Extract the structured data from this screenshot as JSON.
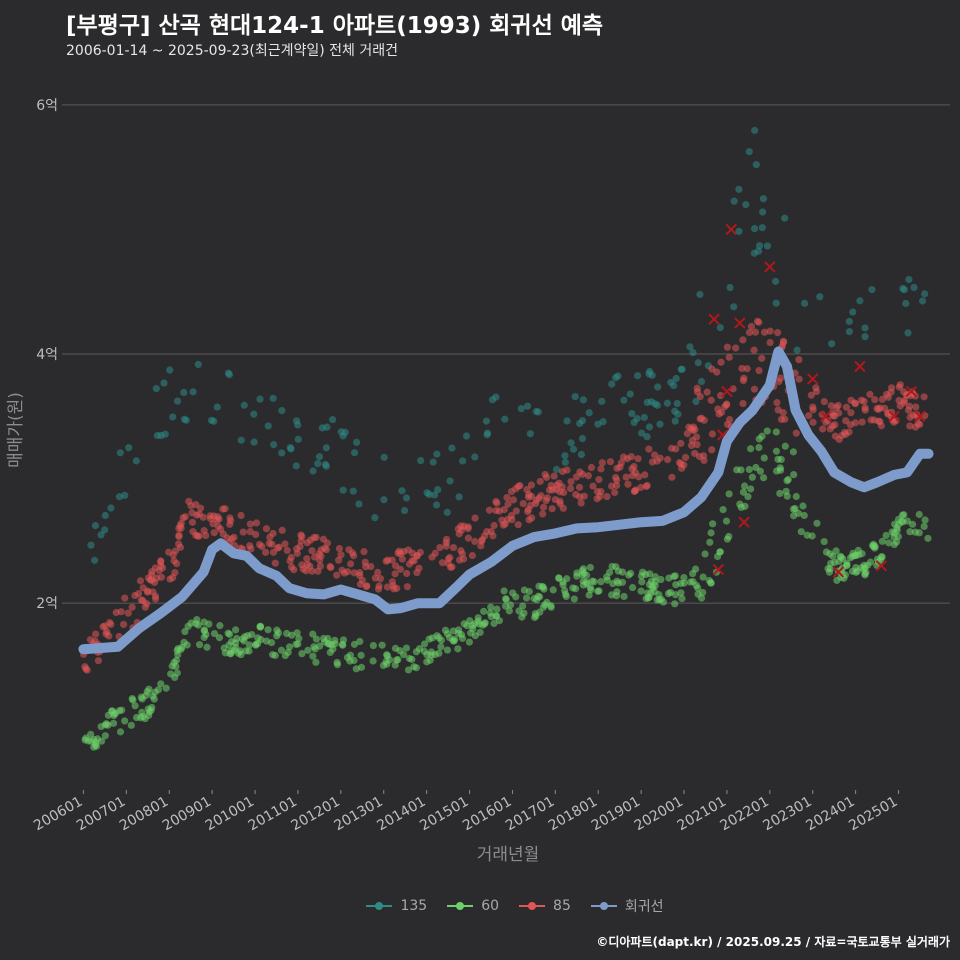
{
  "title": "[부평구] 산곡 현대124-1 아파트(1993) 회귀선 예측",
  "subtitle": "2006-01-14 ~ 2025-09-23(최근계약일) 전체 거래건",
  "credit": "©디아파트(dapt.kr) / 2025.09.25 / 자료=국토교통부 실거래가",
  "colors": {
    "background": "#2b2b2d",
    "grid": "#5b5b5b",
    "series_135": "#2e8b86",
    "series_60": "#6ed06a",
    "series_85": "#e05558",
    "regression": "#7d9bcb",
    "cancelled_mark": "#b0181c"
  },
  "chart_data": {
    "type": "scatter",
    "title": "[부평구] 산곡 현대124-1 아파트(1993) 회귀선 예측",
    "subtitle": "2006-01-14 ~ 2025-09-23(최근계약일) 전체 거래건",
    "xlabel": "거래년월",
    "ylabel": "매매가(원)",
    "x_ticks": [
      "200601",
      "200701",
      "200801",
      "200901",
      "201001",
      "201101",
      "201201",
      "201301",
      "201401",
      "201501",
      "201601",
      "201701",
      "201801",
      "201901",
      "202001",
      "202101",
      "202201",
      "202301",
      "202401",
      "202501"
    ],
    "y_ticks": [
      {
        "value": 2,
        "label": "2억"
      },
      {
        "value": 4,
        "label": "4억"
      },
      {
        "value": 6,
        "label": "6억"
      }
    ],
    "ylim": [
      0.5,
      6.2
    ],
    "y_unit": "억",
    "grid": "horizontal",
    "legend_position": "bottom",
    "series": [
      {
        "name": "135",
        "color": "#2e8b86",
        "trend": [
          [
            2006.0,
            2.6
          ],
          [
            2006.5,
            2.5
          ],
          [
            2007.0,
            3.1
          ],
          [
            2007.5,
            3.4
          ],
          [
            2008.0,
            3.6
          ],
          [
            2008.5,
            3.7
          ],
          [
            2009.0,
            3.7
          ],
          [
            2009.5,
            3.6
          ],
          [
            2010.0,
            3.5
          ],
          [
            2011.0,
            3.3
          ],
          [
            2012.0,
            3.2
          ],
          [
            2013.0,
            2.9
          ],
          [
            2014.0,
            2.9
          ],
          [
            2014.5,
            3.0
          ],
          [
            2015.0,
            3.2
          ],
          [
            2015.5,
            3.4
          ],
          [
            2016.0,
            3.4
          ],
          [
            2017.0,
            3.3
          ],
          [
            2018.0,
            3.5
          ],
          [
            2019.0,
            3.6
          ],
          [
            2020.0,
            3.7
          ],
          [
            2020.5,
            4.0
          ],
          [
            2021.0,
            4.8
          ],
          [
            2021.5,
            5.3
          ],
          [
            2022.0,
            4.9
          ],
          [
            2022.5,
            4.6
          ],
          [
            2023.0,
            4.3
          ],
          [
            2023.5,
            4.2
          ],
          [
            2024.0,
            4.2
          ],
          [
            2024.5,
            4.3
          ],
          [
            2025.0,
            4.4
          ],
          [
            2025.7,
            4.5
          ]
        ]
      },
      {
        "name": "60",
        "color": "#6ed06a",
        "trend": [
          [
            2006.0,
            0.9
          ],
          [
            2006.5,
            1.0
          ],
          [
            2007.0,
            1.1
          ],
          [
            2007.5,
            1.2
          ],
          [
            2008.0,
            1.4
          ],
          [
            2008.5,
            1.8
          ],
          [
            2009.0,
            1.75
          ],
          [
            2009.5,
            1.7
          ],
          [
            2010.0,
            1.7
          ],
          [
            2010.5,
            1.7
          ],
          [
            2011.0,
            1.65
          ],
          [
            2012.0,
            1.6
          ],
          [
            2013.0,
            1.55
          ],
          [
            2013.5,
            1.55
          ],
          [
            2014.0,
            1.6
          ],
          [
            2014.5,
            1.7
          ],
          [
            2015.0,
            1.8
          ],
          [
            2015.5,
            1.95
          ],
          [
            2016.0,
            2.0
          ],
          [
            2016.5,
            2.0
          ],
          [
            2017.0,
            2.1
          ],
          [
            2018.0,
            2.2
          ],
          [
            2019.0,
            2.15
          ],
          [
            2020.0,
            2.1
          ],
          [
            2020.5,
            2.35
          ],
          [
            2021.0,
            2.6
          ],
          [
            2021.5,
            3.1
          ],
          [
            2022.0,
            3.2
          ],
          [
            2022.5,
            3.0
          ],
          [
            2023.0,
            2.6
          ],
          [
            2023.5,
            2.3
          ],
          [
            2024.0,
            2.3
          ],
          [
            2024.5,
            2.4
          ],
          [
            2025.0,
            2.6
          ],
          [
            2025.7,
            2.6
          ]
        ]
      },
      {
        "name": "85",
        "color": "#e05558",
        "trend": [
          [
            2006.0,
            1.6
          ],
          [
            2006.5,
            1.7
          ],
          [
            2007.0,
            1.9
          ],
          [
            2007.5,
            2.1
          ],
          [
            2008.0,
            2.3
          ],
          [
            2008.5,
            2.7
          ],
          [
            2009.0,
            2.6
          ],
          [
            2009.5,
            2.6
          ],
          [
            2010.0,
            2.5
          ],
          [
            2011.0,
            2.4
          ],
          [
            2012.0,
            2.35
          ],
          [
            2013.0,
            2.25
          ],
          [
            2014.0,
            2.3
          ],
          [
            2015.0,
            2.5
          ],
          [
            2015.5,
            2.65
          ],
          [
            2016.0,
            2.75
          ],
          [
            2016.5,
            2.85
          ],
          [
            2017.0,
            2.9
          ],
          [
            2018.0,
            3.0
          ],
          [
            2019.0,
            3.05
          ],
          [
            2020.0,
            3.2
          ],
          [
            2020.5,
            3.5
          ],
          [
            2021.0,
            3.7
          ],
          [
            2021.5,
            4.0
          ],
          [
            2022.0,
            3.9
          ],
          [
            2022.5,
            3.7
          ],
          [
            2023.0,
            3.6
          ],
          [
            2023.5,
            3.45
          ],
          [
            2024.0,
            3.5
          ],
          [
            2024.5,
            3.55
          ],
          [
            2025.0,
            3.6
          ],
          [
            2025.7,
            3.55
          ]
        ]
      },
      {
        "name": "회귀선",
        "color": "#7d9bcb",
        "points": [
          [
            2006.0,
            1.63
          ],
          [
            2006.8,
            1.65
          ],
          [
            2007.3,
            1.8
          ],
          [
            2007.8,
            1.92
          ],
          [
            2008.3,
            2.05
          ],
          [
            2008.8,
            2.25
          ],
          [
            2009.0,
            2.43
          ],
          [
            2009.2,
            2.48
          ],
          [
            2009.5,
            2.4
          ],
          [
            2009.8,
            2.38
          ],
          [
            2010.1,
            2.28
          ],
          [
            2010.5,
            2.22
          ],
          [
            2010.8,
            2.12
          ],
          [
            2011.2,
            2.08
          ],
          [
            2011.6,
            2.07
          ],
          [
            2012.0,
            2.11
          ],
          [
            2012.4,
            2.07
          ],
          [
            2012.8,
            2.03
          ],
          [
            2013.1,
            1.95
          ],
          [
            2013.4,
            1.96
          ],
          [
            2013.8,
            2.0
          ],
          [
            2014.3,
            2.0
          ],
          [
            2014.7,
            2.13
          ],
          [
            2015.0,
            2.23
          ],
          [
            2015.5,
            2.33
          ],
          [
            2016.0,
            2.46
          ],
          [
            2016.5,
            2.53
          ],
          [
            2017.0,
            2.56
          ],
          [
            2017.5,
            2.6
          ],
          [
            2018.0,
            2.61
          ],
          [
            2018.5,
            2.63
          ],
          [
            2019.0,
            2.65
          ],
          [
            2019.5,
            2.66
          ],
          [
            2020.0,
            2.73
          ],
          [
            2020.4,
            2.85
          ],
          [
            2020.8,
            3.05
          ],
          [
            2021.0,
            3.3
          ],
          [
            2021.3,
            3.45
          ],
          [
            2021.6,
            3.55
          ],
          [
            2022.0,
            3.75
          ],
          [
            2022.2,
            4.02
          ],
          [
            2022.4,
            3.9
          ],
          [
            2022.6,
            3.55
          ],
          [
            2022.9,
            3.35
          ],
          [
            2023.2,
            3.22
          ],
          [
            2023.5,
            3.05
          ],
          [
            2023.9,
            2.97
          ],
          [
            2024.2,
            2.93
          ],
          [
            2024.5,
            2.97
          ],
          [
            2024.9,
            3.03
          ],
          [
            2025.2,
            3.05
          ],
          [
            2025.5,
            3.2
          ],
          [
            2025.7,
            3.2
          ]
        ]
      }
    ],
    "cancelled_points": [
      [
        2020.7,
        4.28
      ],
      [
        2020.9,
        3.35
      ],
      [
        2021.0,
        3.7
      ],
      [
        2021.1,
        5.0
      ],
      [
        2021.3,
        4.25
      ],
      [
        2021.4,
        2.65
      ],
      [
        2020.8,
        2.27
      ],
      [
        2022.0,
        4.7
      ],
      [
        2023.0,
        3.8
      ],
      [
        2023.3,
        3.5
      ],
      [
        2023.6,
        2.25
      ],
      [
        2024.1,
        3.9
      ],
      [
        2024.6,
        2.3
      ],
      [
        2024.9,
        3.5
      ],
      [
        2025.3,
        3.7
      ],
      [
        2025.5,
        3.5
      ]
    ]
  },
  "legend": [
    {
      "label": "135",
      "color": "#2e8b86"
    },
    {
      "label": "60",
      "color": "#6ed06a"
    },
    {
      "label": "85",
      "color": "#e05558"
    },
    {
      "label": "회귀선",
      "color": "#7d9bcb"
    }
  ]
}
